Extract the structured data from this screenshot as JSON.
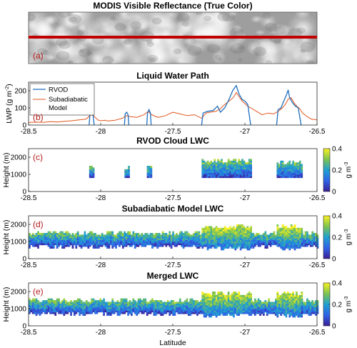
{
  "chart_data": [
    {
      "panel": "(a)",
      "type": "image",
      "title": "MODIS Visible Reflectance (True Color)",
      "track_color": "#c00000"
    },
    {
      "panel": "(b)",
      "type": "line",
      "title": "Liquid Water Path",
      "xlabel": "",
      "ylabel": "LWP (g m^-2)",
      "ylabel_parts": [
        "LWP (g m",
        "-2",
        ")"
      ],
      "xlim": [
        -28.5,
        -26.5
      ],
      "ylim": [
        0,
        250
      ],
      "xticks": [
        "-28.5",
        "-28",
        "-27.5",
        "-27",
        "-26.5"
      ],
      "yticks": [
        "0",
        "100",
        "200"
      ],
      "legend_placement": "top-left",
      "series": [
        {
          "name": "RVOD",
          "color": "#1f6fbf",
          "segments": [
            [
              [
                -28.08,
                0
              ],
              [
                -28.075,
                60
              ],
              [
                -28.065,
                80
              ],
              [
                -28.055,
                75
              ],
              [
                -28.045,
                0
              ]
            ],
            [
              [
                -27.835,
                0
              ],
              [
                -27.83,
                65
              ],
              [
                -27.82,
                75
              ],
              [
                -27.81,
                60
              ],
              [
                -27.805,
                0
              ]
            ],
            [
              [
                -27.68,
                0
              ],
              [
                -27.675,
                70
              ],
              [
                -27.665,
                90
              ],
              [
                -27.655,
                70
              ],
              [
                -27.65,
                0
              ]
            ],
            [
              [
                -27.3,
                0
              ],
              [
                -27.29,
                70
              ],
              [
                -27.26,
                80
              ],
              [
                -27.22,
                85
              ],
              [
                -27.19,
                110
              ],
              [
                -27.17,
                75
              ],
              [
                -27.14,
                100
              ],
              [
                -27.11,
                150
              ],
              [
                -27.085,
                200
              ],
              [
                -27.06,
                230
              ],
              [
                -27.04,
                180
              ],
              [
                -27.02,
                150
              ],
              [
                -27.0,
                140
              ],
              [
                -26.98,
                120
              ],
              [
                -26.96,
                0
              ]
            ],
            [
              [
                -26.78,
                0
              ],
              [
                -26.77,
                90
              ],
              [
                -26.75,
                100
              ],
              [
                -26.73,
                140
              ],
              [
                -26.71,
                180
              ],
              [
                -26.7,
                205
              ],
              [
                -26.69,
                160
              ],
              [
                -26.67,
                130
              ],
              [
                -26.65,
                110
              ],
              [
                -26.63,
                100
              ],
              [
                -26.61,
                0
              ]
            ]
          ]
        },
        {
          "name": "Subadiabatic Model",
          "legend_lines": [
            "Subadiabatic",
            "Model"
          ],
          "color": "#e2541b",
          "x": [
            -28.5,
            -28.45,
            -28.4,
            -28.35,
            -28.3,
            -28.25,
            -28.2,
            -28.15,
            -28.1,
            -28.07,
            -28.05,
            -28.02,
            -28.0,
            -27.97,
            -27.95,
            -27.9,
            -27.85,
            -27.82,
            -27.8,
            -27.75,
            -27.7,
            -27.67,
            -27.65,
            -27.62,
            -27.6,
            -27.55,
            -27.5,
            -27.45,
            -27.4,
            -27.35,
            -27.3,
            -27.27,
            -27.24,
            -27.2,
            -27.17,
            -27.14,
            -27.11,
            -27.08,
            -27.06,
            -27.04,
            -27.02,
            -27.0,
            -26.98,
            -26.96,
            -26.92,
            -26.88,
            -26.84,
            -26.8,
            -26.77,
            -26.74,
            -26.72,
            -26.7,
            -26.68,
            -26.66,
            -26.64,
            -26.62,
            -26.6,
            -26.57,
            -26.54,
            -26.5
          ],
          "y": [
            15,
            17,
            16,
            20,
            18,
            22,
            25,
            30,
            35,
            60,
            55,
            30,
            25,
            28,
            24,
            28,
            40,
            55,
            50,
            45,
            60,
            80,
            62,
            50,
            45,
            55,
            75,
            65,
            55,
            60,
            40,
            70,
            75,
            80,
            95,
            120,
            140,
            160,
            190,
            165,
            140,
            125,
            110,
            100,
            80,
            60,
            70,
            65,
            80,
            100,
            120,
            150,
            160,
            130,
            110,
            95,
            70,
            50,
            35,
            30
          ]
        }
      ]
    },
    {
      "panel": "(c)",
      "type": "heatmap",
      "title": "RVOD Cloud LWC",
      "ylabel": "Height (m)",
      "xlim": [
        -28.5,
        -26.5
      ],
      "ylim": [
        0,
        2500
      ],
      "xticks": [
        "-28.5",
        "-28",
        "-27.5",
        "-27",
        "-26.5"
      ],
      "yticks": [
        "0",
        "1000",
        "2000"
      ],
      "colorbar": {
        "label": "g m^-3",
        "label_parts": [
          "g m",
          "-3"
        ],
        "ticks": [
          "0",
          "0.2",
          "0.4"
        ],
        "range": [
          0,
          0.4
        ]
      },
      "cloud_columns": [
        {
          "x0": -28.08,
          "x1": -28.045,
          "base": 800,
          "top": 1400
        },
        {
          "x0": -27.835,
          "x1": -27.805,
          "base": 800,
          "top": 1400
        },
        {
          "x0": -27.68,
          "x1": -27.645,
          "base": 800,
          "top": 1400
        },
        {
          "x0": -27.3,
          "x1": -26.96,
          "base": 800,
          "top": 1800
        },
        {
          "x0": -26.78,
          "x1": -26.61,
          "base": 800,
          "top": 1700
        }
      ]
    },
    {
      "panel": "(d)",
      "type": "heatmap",
      "title": "Subadiabatic Model LWC",
      "ylabel": "Height (m)",
      "xlim": [
        -28.5,
        -26.5
      ],
      "ylim": [
        0,
        2500
      ],
      "xticks": [
        "-28.5",
        "-28",
        "-27.5",
        "-27",
        "-26.5"
      ],
      "yticks": [
        "0",
        "1000",
        "2000"
      ],
      "colorbar": {
        "label": "g m^-3",
        "label_parts": [
          "g m",
          "-3"
        ],
        "ticks": [
          "0",
          "0.2",
          "0.4"
        ],
        "range": [
          0,
          0.4
        ]
      },
      "cloud_columns": [
        {
          "x0": -28.5,
          "x1": -27.3,
          "base": 700,
          "top": 1500
        },
        {
          "x0": -27.3,
          "x1": -26.96,
          "base": 600,
          "top": 1900
        },
        {
          "x0": -26.96,
          "x1": -26.78,
          "base": 700,
          "top": 1500
        },
        {
          "x0": -26.78,
          "x1": -26.61,
          "base": 600,
          "top": 1900
        },
        {
          "x0": -26.61,
          "x1": -26.5,
          "base": 700,
          "top": 1500
        }
      ]
    },
    {
      "panel": "(e)",
      "type": "heatmap",
      "title": "Merged LWC",
      "xlabel": "Latitude",
      "ylabel": "Height (m)",
      "xlim": [
        -28.5,
        -26.5
      ],
      "ylim": [
        0,
        2500
      ],
      "xticks": [
        "-28.5",
        "-28",
        "-27.5",
        "-27",
        "-26.5"
      ],
      "yticks": [
        "0",
        "1000",
        "2000"
      ],
      "colorbar": {
        "label": "g m^-3",
        "label_parts": [
          "g m",
          "-3"
        ],
        "ticks": [
          "0",
          "0.2",
          "0.4"
        ],
        "range": [
          0,
          0.4
        ]
      },
      "cloud_columns": [
        {
          "x0": -28.5,
          "x1": -27.3,
          "base": 700,
          "top": 1500
        },
        {
          "x0": -27.3,
          "x1": -26.96,
          "base": 600,
          "top": 1900
        },
        {
          "x0": -26.96,
          "x1": -26.78,
          "base": 700,
          "top": 1500
        },
        {
          "x0": -26.78,
          "x1": -26.61,
          "base": 600,
          "top": 1900
        },
        {
          "x0": -26.61,
          "x1": -26.5,
          "base": 700,
          "top": 1500
        }
      ]
    }
  ]
}
